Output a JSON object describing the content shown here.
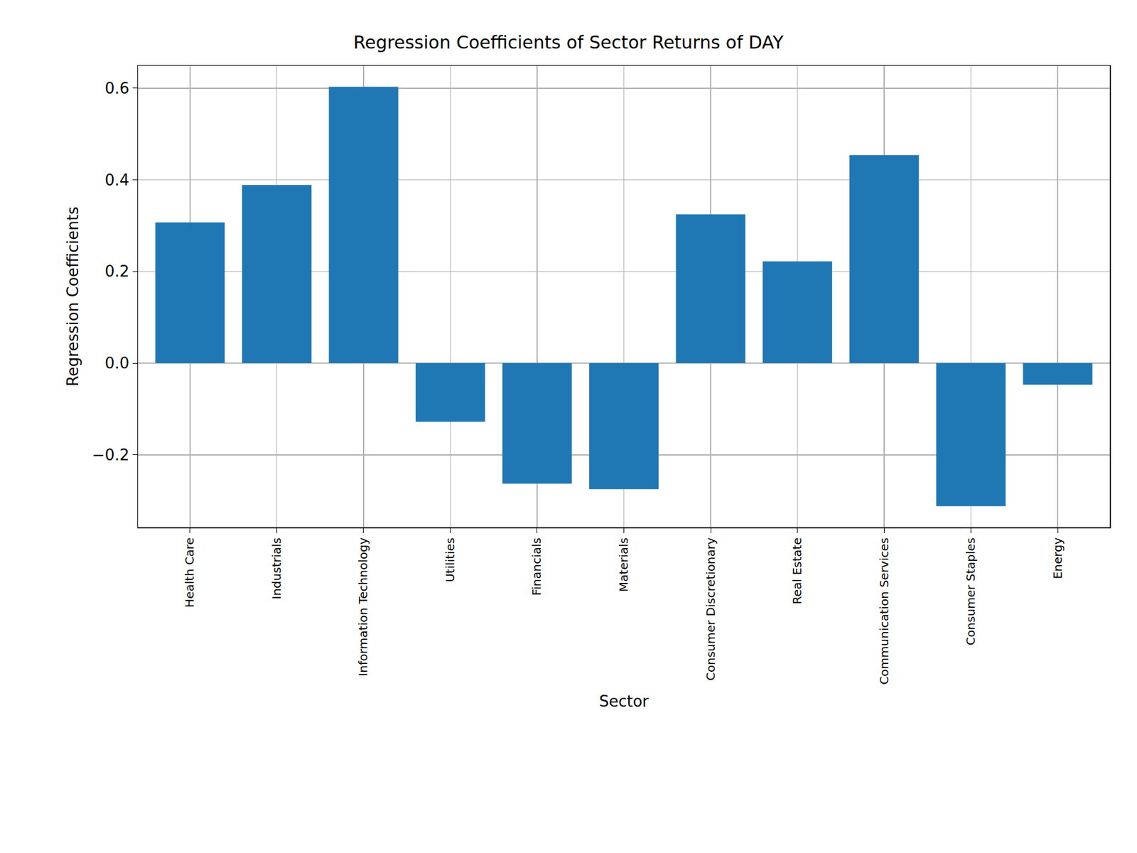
{
  "chart_data": {
    "type": "bar",
    "title": "Regression Coefficients of Sector Returns of DAY",
    "x_label": "Sector",
    "y_label": "Regression Coefficients",
    "categories": [
      "Health Care",
      "Industrials",
      "Information Technology",
      "Utilities",
      "Financials",
      "Materials",
      "Consumer Discretionary",
      "Real Estate",
      "Communication Services",
      "Consumer Staples",
      "Energy"
    ],
    "values": [
      0.307,
      0.389,
      0.603,
      -0.128,
      -0.263,
      -0.275,
      0.325,
      0.222,
      0.454,
      -0.312,
      -0.047
    ],
    "color": "#1f77b4",
    "ylim": [
      -0.358,
      0.649
    ],
    "yticks": [
      {
        "value": -0.2,
        "label": "−0.2"
      },
      {
        "value": 0,
        "label": "0.0"
      },
      {
        "value": 0.2,
        "label": "0.2"
      },
      {
        "value": 0.4,
        "label": "0.4"
      },
      {
        "value": 0.6,
        "label": "0.6"
      }
    ],
    "grid": true
  }
}
